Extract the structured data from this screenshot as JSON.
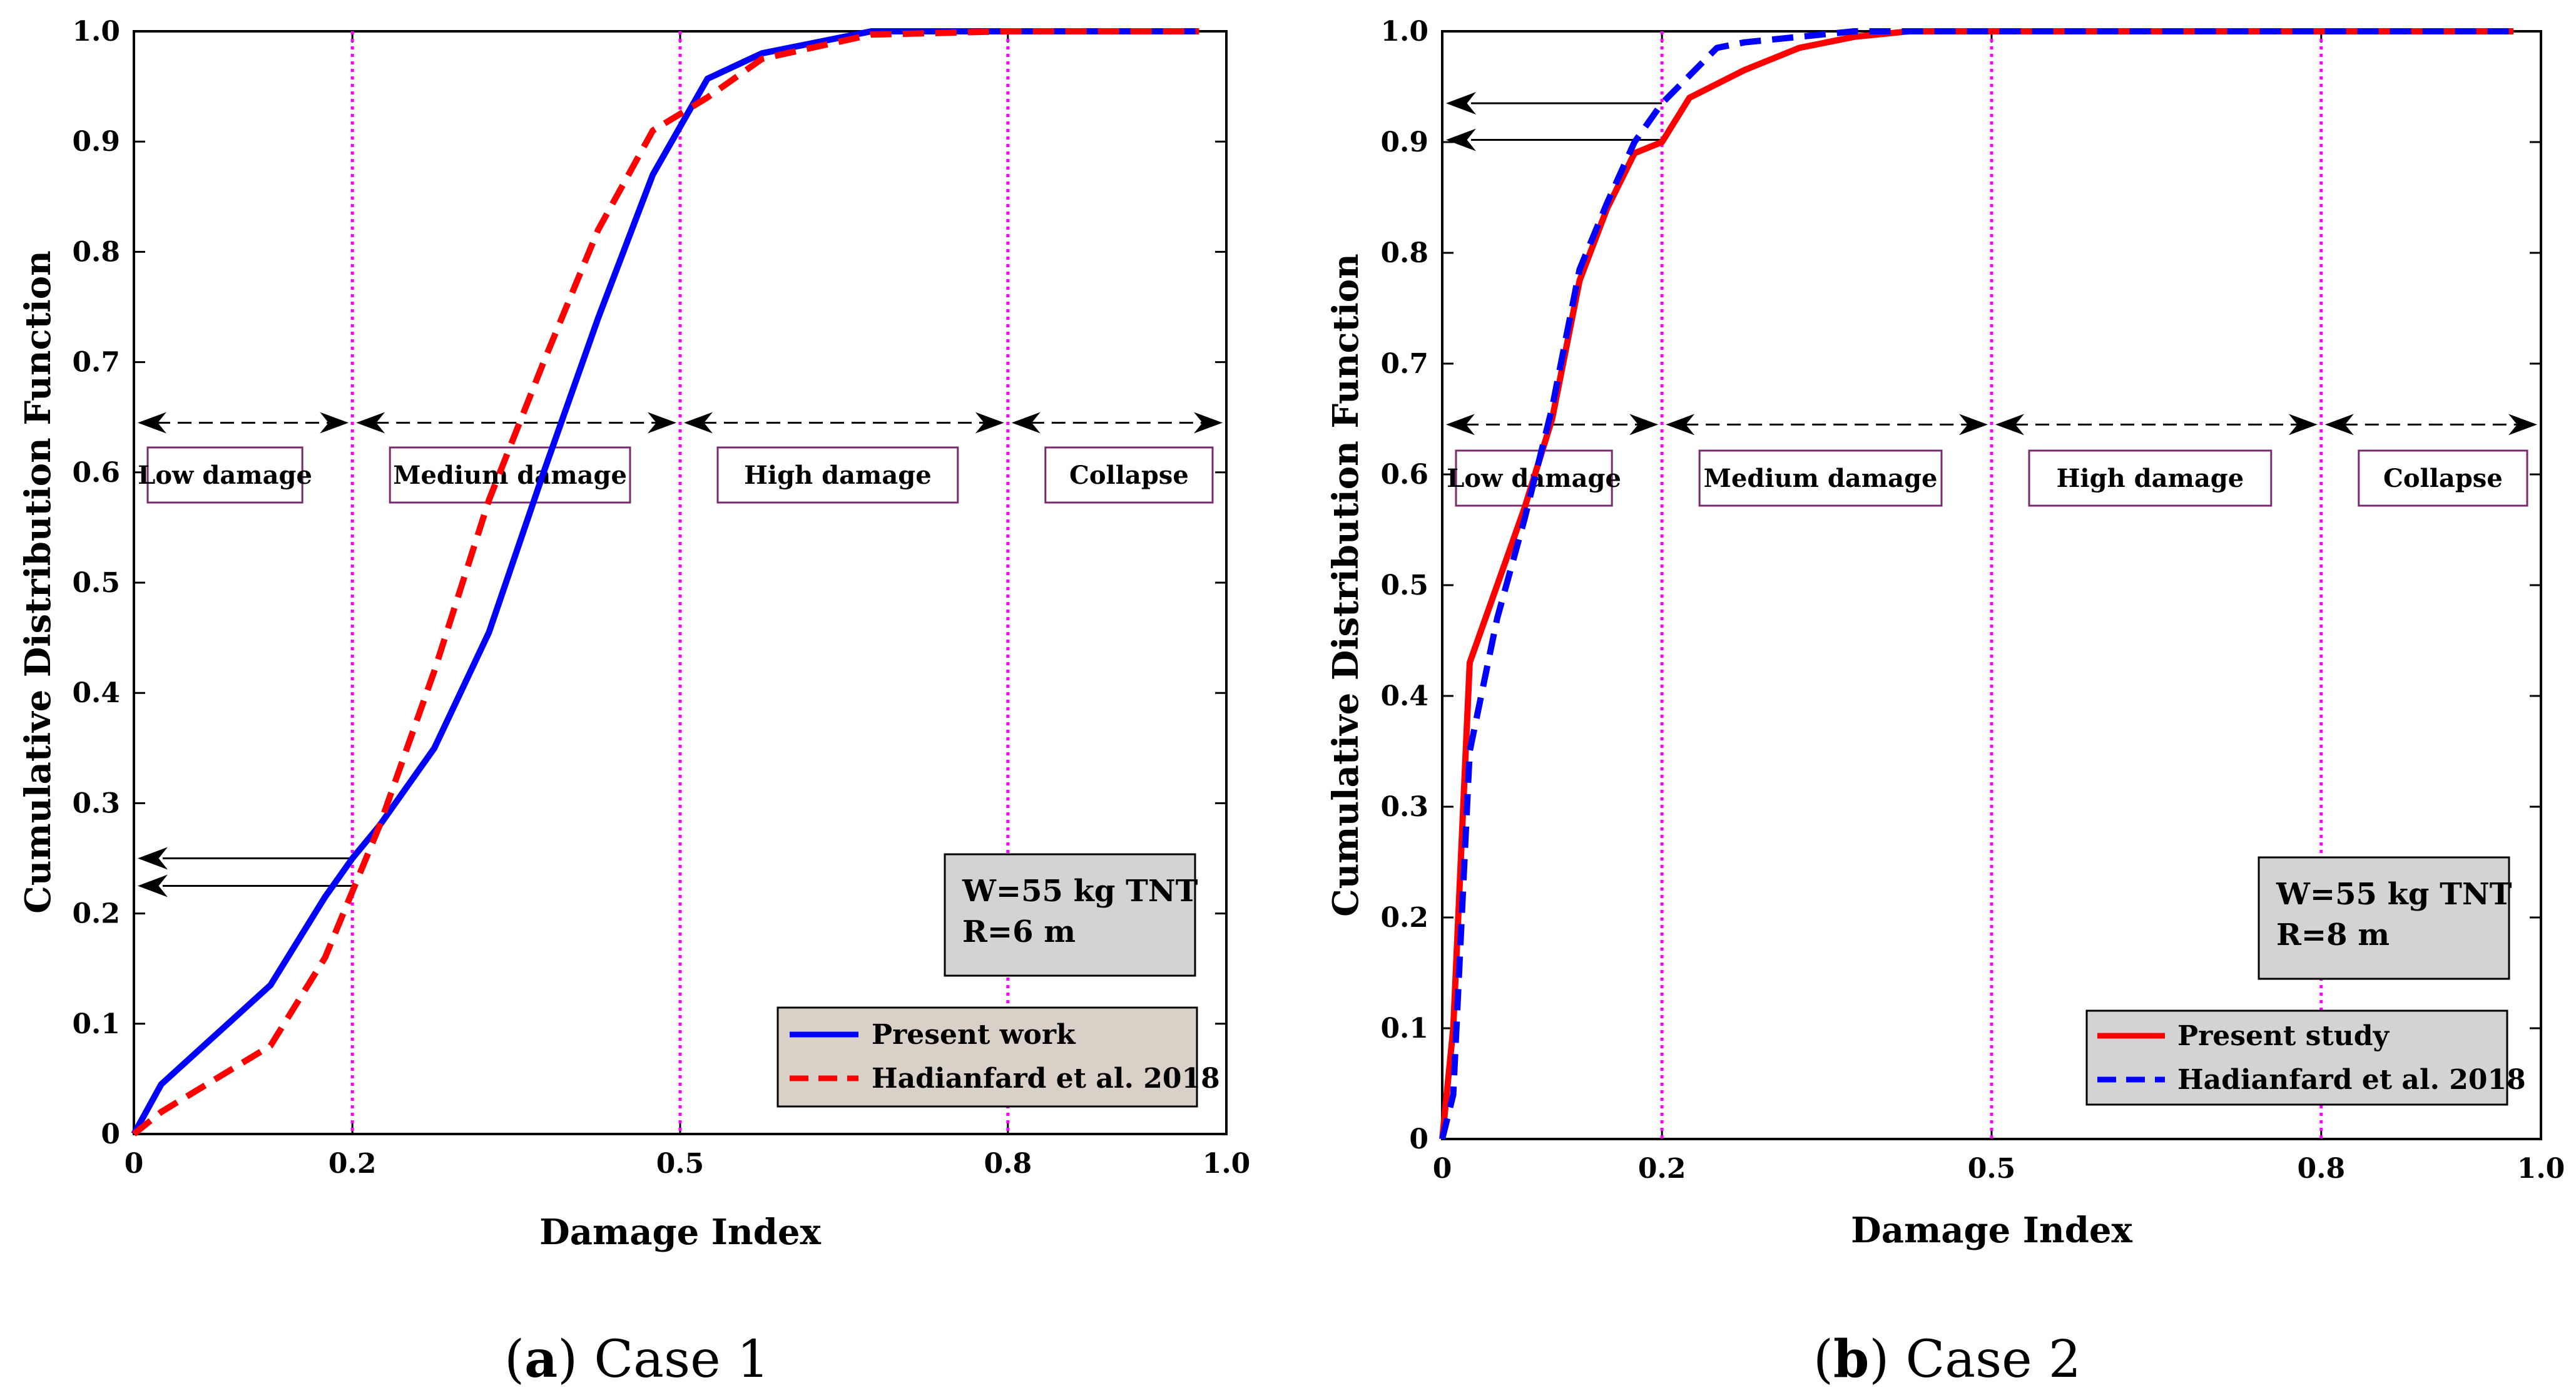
{
  "chart_data": [
    {
      "type": "line",
      "caption": {
        "letter": "a",
        "open": "(",
        "close": ")",
        "text": " Case 1"
      },
      "xlabel": "Damage Index",
      "ylabel": "Cumulative Distribution Function",
      "xlim": [
        0,
        1
      ],
      "ylim": [
        0,
        1
      ],
      "xticks": [
        0,
        0.2,
        0.5,
        0.8,
        1.0
      ],
      "xtick_labels": [
        "0",
        "0.2",
        "0.5",
        "0.8",
        "1.0"
      ],
      "yticks": [
        0,
        0.1,
        0.2,
        0.3,
        0.4,
        0.5,
        0.6,
        0.7,
        0.8,
        0.9,
        1.0
      ],
      "ytick_labels": [
        "0",
        "0.1",
        "0.2",
        "0.3",
        "0.4",
        "0.5",
        "0.6",
        "0.7",
        "0.8",
        "0.9",
        "1.0"
      ],
      "thresholds": [
        0.2,
        0.5,
        0.8
      ],
      "zones": [
        {
          "label": "Low damage",
          "from": 0,
          "to": 0.2
        },
        {
          "label": "Medium damage",
          "from": 0.2,
          "to": 0.5
        },
        {
          "label": "High damage",
          "from": 0.5,
          "to": 0.8
        },
        {
          "label": "Collapse",
          "from": 0.8,
          "to": 1.0
        }
      ],
      "zone_arrow_y": 0.645,
      "pointer_arrows": [
        0.25,
        0.225
      ],
      "annotation": [
        "W=55 kg TNT",
        "R=6 m"
      ],
      "series": [
        {
          "name": "Present work",
          "color": "#0000ff",
          "dashed": false,
          "x": [
            0,
            0.025,
            0.075,
            0.125,
            0.175,
            0.2,
            0.225,
            0.275,
            0.325,
            0.375,
            0.425,
            0.475,
            0.525,
            0.575,
            0.675,
            0.8,
            0.975
          ],
          "y": [
            0,
            0.045,
            0.09,
            0.135,
            0.215,
            0.25,
            0.28,
            0.35,
            0.455,
            0.6,
            0.74,
            0.87,
            0.957,
            0.98,
            1.0,
            1.0,
            1.0
          ]
        },
        {
          "name": "Hadianfard et al. 2018",
          "color": "#ff0000",
          "dashed": true,
          "x": [
            0,
            0.025,
            0.075,
            0.125,
            0.15,
            0.175,
            0.2,
            0.225,
            0.275,
            0.325,
            0.375,
            0.425,
            0.475,
            0.525,
            0.575,
            0.675,
            0.8,
            0.975
          ],
          "y": [
            0,
            0.02,
            0.05,
            0.08,
            0.12,
            0.16,
            0.22,
            0.28,
            0.42,
            0.575,
            0.7,
            0.82,
            0.91,
            0.94,
            0.975,
            0.997,
            1.0,
            1.0
          ]
        }
      ]
    },
    {
      "type": "line",
      "caption": {
        "letter": "b",
        "open": "(",
        "close": ")",
        "text": " Case 2"
      },
      "xlabel": "Damage Index",
      "ylabel": "Cumulative Distribution Function",
      "xlim": [
        0,
        1
      ],
      "ylim": [
        0,
        1
      ],
      "xticks": [
        0,
        0.2,
        0.5,
        0.8,
        1.0
      ],
      "xtick_labels": [
        "0",
        "0.2",
        "0.5",
        "0.8",
        "1.0"
      ],
      "yticks": [
        0,
        0.1,
        0.2,
        0.3,
        0.4,
        0.5,
        0.6,
        0.7,
        0.8,
        0.9,
        1.0
      ],
      "ytick_labels": [
        "0",
        "0.1",
        "0.2",
        "0.3",
        "0.4",
        "0.5",
        "0.6",
        "0.7",
        "0.8",
        "0.9",
        "1.0"
      ],
      "thresholds": [
        0.2,
        0.5,
        0.8
      ],
      "zones": [
        {
          "label": "Low damage",
          "from": 0,
          "to": 0.2
        },
        {
          "label": "Medium damage",
          "from": 0.2,
          "to": 0.5
        },
        {
          "label": "High damage",
          "from": 0.5,
          "to": 0.8
        },
        {
          "label": "Collapse",
          "from": 0.8,
          "to": 1.0
        }
      ],
      "zone_arrow_y": 0.645,
      "pointer_arrows": [
        0.935,
        0.902
      ],
      "annotation": [
        "W=55 kg TNT",
        "R=8 m"
      ],
      "series": [
        {
          "name": "Present study",
          "color": "#ff0000",
          "dashed": false,
          "x": [
            0,
            0.01,
            0.025,
            0.05,
            0.075,
            0.1,
            0.125,
            0.15,
            0.175,
            0.2,
            0.225,
            0.275,
            0.325,
            0.375,
            0.425,
            0.5,
            0.6,
            0.8,
            0.975
          ],
          "y": [
            0,
            0.1,
            0.43,
            0.5,
            0.57,
            0.65,
            0.775,
            0.84,
            0.89,
            0.9,
            0.94,
            0.965,
            0.985,
            0.995,
            1.0,
            1.0,
            1.0,
            1.0,
            1.0
          ]
        },
        {
          "name": "Hadianfard et al. 2018",
          "color": "#0000ff",
          "dashed": true,
          "x": [
            0,
            0.01,
            0.025,
            0.05,
            0.075,
            0.1,
            0.125,
            0.15,
            0.175,
            0.2,
            0.225,
            0.25,
            0.275,
            0.325,
            0.375,
            0.425,
            0.5,
            0.6,
            0.8,
            0.975
          ],
          "y": [
            0,
            0.04,
            0.35,
            0.47,
            0.56,
            0.66,
            0.785,
            0.845,
            0.9,
            0.935,
            0.96,
            0.985,
            0.99,
            0.995,
            1.0,
            1.0,
            1.0,
            1.0,
            1.0,
            1.0
          ]
        }
      ]
    }
  ]
}
